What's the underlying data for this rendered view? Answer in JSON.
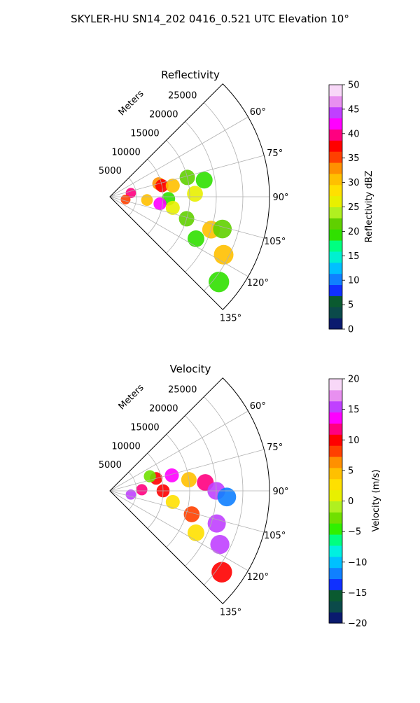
{
  "figure": {
    "suptitle": "SKYLER-HU  SN14_202  0416_0.521 UTC Elevation 10°"
  },
  "chart_data": [
    {
      "type": "heatmap",
      "projection": "polar-sector",
      "title": "Reflectivity",
      "radial_axis_label": "Meters",
      "radial_ticks": [
        5000,
        10000,
        15000,
        20000,
        25000
      ],
      "radial_tick_labels": [
        "5000",
        "10000",
        "15000",
        "20000",
        "25000"
      ],
      "rmax": 30000,
      "azimuth_range_deg": [
        45,
        135
      ],
      "azimuth_ticks": [
        60,
        75,
        90,
        105,
        120,
        135
      ],
      "azimuth_tick_labels": [
        "60°",
        "75°",
        "90°",
        "105°",
        "120°",
        "135°"
      ],
      "grid": true,
      "colorbar": {
        "label": "Reflectivity dBZ",
        "range": [
          0,
          50
        ],
        "ticks": [
          0,
          5,
          10,
          15,
          20,
          25,
          30,
          35,
          40,
          45,
          50
        ],
        "tick_labels": [
          "0",
          "5",
          "10",
          "15",
          "20",
          "25",
          "30",
          "35",
          "40",
          "45",
          "50"
        ],
        "colors": [
          "#0a1a6e",
          "#0b4a4a",
          "#0a5a30",
          "#1030ff",
          "#1080ff",
          "#00c0ff",
          "#00f0d0",
          "#00ff80",
          "#30e000",
          "#60d000",
          "#b0f020",
          "#e8f000",
          "#ffe000",
          "#ffc000",
          "#ff9000",
          "#ff4000",
          "#ff0000",
          "#ff0080",
          "#ff00ff",
          "#c040ff",
          "#e890f0",
          "#f8d8f8"
        ]
      },
      "echo_cells": [
        {
          "r": 9500,
          "az": 75,
          "value": 32
        },
        {
          "r": 10000,
          "az": 78,
          "value": 38
        },
        {
          "r": 12000,
          "az": 80,
          "value": 30
        },
        {
          "r": 15000,
          "az": 76,
          "value": 22
        },
        {
          "r": 18000,
          "az": 80,
          "value": 20
        },
        {
          "r": 16000,
          "az": 88,
          "value": 25
        },
        {
          "r": 11000,
          "az": 92,
          "value": 20
        },
        {
          "r": 7000,
          "az": 95,
          "value": 30
        },
        {
          "r": 9500,
          "az": 98,
          "value": 42
        },
        {
          "r": 12000,
          "az": 100,
          "value": 25
        },
        {
          "r": 15000,
          "az": 106,
          "value": 22
        },
        {
          "r": 20000,
          "az": 108,
          "value": 30
        },
        {
          "r": 22000,
          "az": 106,
          "value": 22
        },
        {
          "r": 18000,
          "az": 116,
          "value": 20
        },
        {
          "r": 24000,
          "az": 117,
          "value": 30
        },
        {
          "r": 26000,
          "az": 128,
          "value": 20
        },
        {
          "r": 4000,
          "az": 80,
          "value": 40
        },
        {
          "r": 3000,
          "az": 100,
          "value": 35
        }
      ]
    },
    {
      "type": "heatmap",
      "projection": "polar-sector",
      "title": "Velocity",
      "radial_axis_label": "Meters",
      "radial_ticks": [
        5000,
        10000,
        15000,
        20000,
        25000
      ],
      "radial_tick_labels": [
        "5000",
        "10000",
        "15000",
        "20000",
        "25000"
      ],
      "rmax": 30000,
      "azimuth_range_deg": [
        45,
        135
      ],
      "azimuth_ticks": [
        60,
        75,
        90,
        105,
        120,
        135
      ],
      "azimuth_tick_labels": [
        "60°",
        "75°",
        "90°",
        "105°",
        "120°",
        "135°"
      ],
      "grid": true,
      "colorbar": {
        "label": "Velocity (m/s)",
        "range": [
          -20,
          20
        ],
        "ticks": [
          -20,
          -15,
          -10,
          -5,
          0,
          5,
          10,
          15,
          20
        ],
        "tick_labels": [
          "−20",
          "−15",
          "−10",
          "−5",
          "0",
          "5",
          "10",
          "15",
          "20"
        ],
        "colors": [
          "#0a1a6e",
          "#0b4a4a",
          "#0a5a30",
          "#1030ff",
          "#1080ff",
          "#00c0ff",
          "#00f0e0",
          "#00ff80",
          "#30f000",
          "#70e000",
          "#b0f020",
          "#e8f000",
          "#ffe000",
          "#ffc000",
          "#ff9000",
          "#ff4000",
          "#ff0000",
          "#ff0080",
          "#ff00ff",
          "#c040ff",
          "#e890f0",
          "#f8d8f8"
        ]
      },
      "echo_cells": [
        {
          "r": 9000,
          "az": 75,
          "value": 10
        },
        {
          "r": 12000,
          "az": 76,
          "value": 14
        },
        {
          "r": 15000,
          "az": 82,
          "value": 4
        },
        {
          "r": 18000,
          "az": 85,
          "value": 12
        },
        {
          "r": 20000,
          "az": 90,
          "value": 15
        },
        {
          "r": 22000,
          "az": 93,
          "value": -12
        },
        {
          "r": 10000,
          "az": 90,
          "value": 10
        },
        {
          "r": 6000,
          "az": 88,
          "value": 12
        },
        {
          "r": 4000,
          "az": 100,
          "value": 16
        },
        {
          "r": 12000,
          "az": 100,
          "value": 3
        },
        {
          "r": 16000,
          "az": 106,
          "value": 9
        },
        {
          "r": 21000,
          "az": 107,
          "value": 15
        },
        {
          "r": 18000,
          "az": 116,
          "value": 2
        },
        {
          "r": 23000,
          "az": 116,
          "value": 16
        },
        {
          "r": 26000,
          "az": 126,
          "value": 10
        },
        {
          "r": 8000,
          "az": 70,
          "value": -3
        }
      ]
    }
  ]
}
